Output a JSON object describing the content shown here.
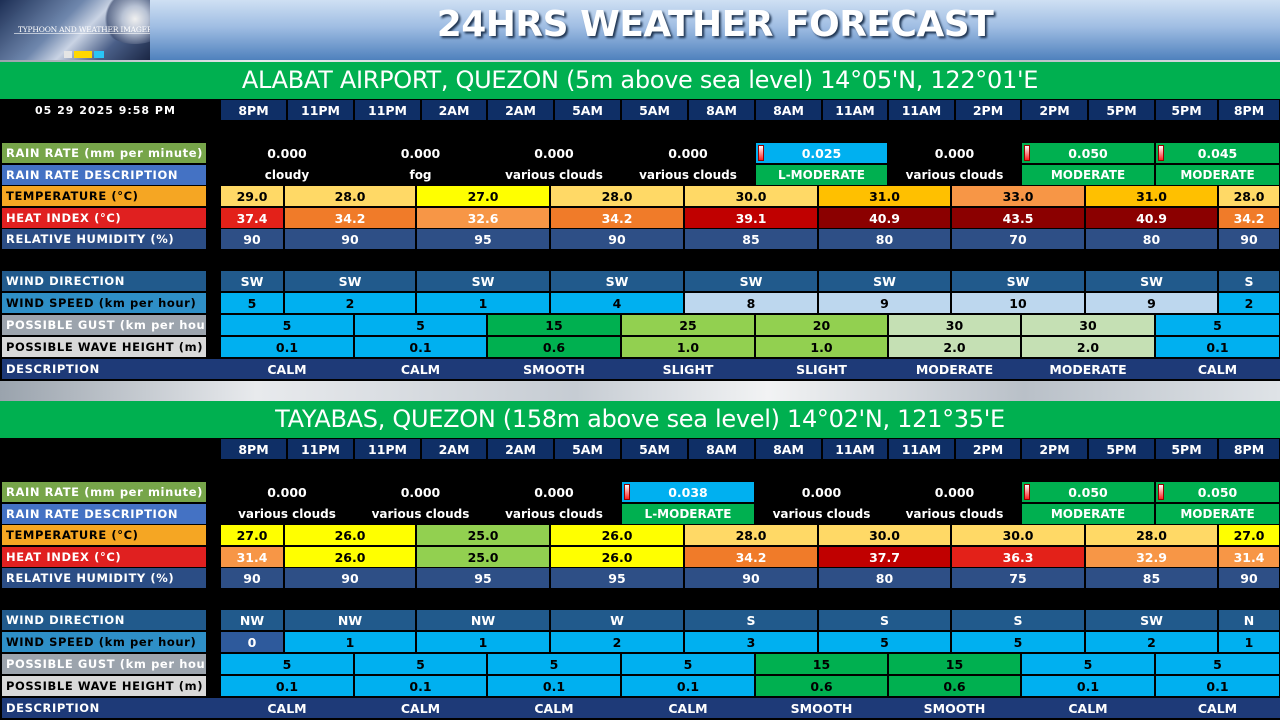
{
  "header": {
    "title": "24HRS WEATHER FORECAST",
    "logo_caption": "TYPHOON AND WEATHER IMAGERY"
  },
  "datetime": "05 29 2025 9:58 PM",
  "time_pairs": [
    [
      "8PM",
      "11PM"
    ],
    [
      "11PM",
      "2AM"
    ],
    [
      "2AM",
      "5AM"
    ],
    [
      "5AM",
      "8AM"
    ],
    [
      "8AM",
      "11AM"
    ],
    [
      "11AM",
      "2PM"
    ],
    [
      "2PM",
      "5PM"
    ],
    [
      "5PM",
      "8PM"
    ]
  ],
  "labels": {
    "rain_rate": "RAIN RATE (mm per minute)",
    "rain_description": "RAIN RATE DESCRIPTION",
    "temperature": "TEMPERATURE (°C)",
    "heat_index": "HEAT INDEX (°C)",
    "humidity": "RELATIVE HUMIDITY (%)",
    "wind_direction": "WIND DIRECTION",
    "wind_speed": "WIND SPEED (km per hour)",
    "gust": "POSSIBLE GUST (km per hour)",
    "wave_height": "POSSIBLE WAVE HEIGHT (m)",
    "sea_description": "DESCRIPTION"
  },
  "colors": {
    "label_green": "#77a54a",
    "label_blue": "#4472c4",
    "label_orange": "#f5a623",
    "label_red": "#e02020",
    "label_navy": "#2b4d85",
    "label_teal": "#215a8c",
    "label_sky": "#2e8fc7",
    "label_gray": "#9ca4ad",
    "label_light": "#d9d9d9",
    "row_navy": "#1e3a78",
    "cell_navy": "#2e4f86",
    "time_navy": "#0f2f66"
  },
  "stations": [
    {
      "title": "ALABAT AIRPORT, QUEZON (5m above sea level) 14°05'N, 122°01'E",
      "rain": [
        {
          "rate": "0.000",
          "desc": "cloudy",
          "bg": "",
          "ind": false
        },
        {
          "rate": "0.000",
          "desc": "fog",
          "bg": "",
          "ind": false
        },
        {
          "rate": "0.000",
          "desc": "various clouds",
          "bg": "",
          "ind": false
        },
        {
          "rate": "0.000",
          "desc": "various clouds",
          "bg": "",
          "ind": false
        },
        {
          "rate": "0.025",
          "desc": "L-MODERATE",
          "bg": "#00b0f0",
          "dbg": "#00b050",
          "ind": true
        },
        {
          "rate": "0.000",
          "desc": "various clouds",
          "bg": "",
          "ind": false
        },
        {
          "rate": "0.050",
          "desc": "MODERATE",
          "bg": "#00b050",
          "dbg": "#00b050",
          "ind": true
        },
        {
          "rate": "0.045",
          "desc": "MODERATE",
          "bg": "#00b050",
          "dbg": "#00b050",
          "ind": true
        }
      ],
      "hourly": [
        {
          "temp": "29.0",
          "temp_bg": "#ffd966",
          "hi": "37.4",
          "hi_bg": "#e32119",
          "rh": "90",
          "wdir": "SW",
          "wspd": "5",
          "wspd_bg": "#00b0f0"
        },
        {
          "temp": "28.0",
          "temp_bg": "#ffd966",
          "hi": "34.2",
          "hi_bg": "#f07b29",
          "rh": "90",
          "wdir": "SW",
          "wspd": "2",
          "wspd_bg": "#00b0f0"
        },
        {
          "temp": "27.0",
          "temp_bg": "#ffff00",
          "hi": "32.6",
          "hi_bg": "#f79646",
          "rh": "95",
          "wdir": "SW",
          "wspd": "1",
          "wspd_bg": "#00b0f0"
        },
        {
          "temp": "28.0",
          "temp_bg": "#ffd966",
          "hi": "34.2",
          "hi_bg": "#f07b29",
          "rh": "90",
          "wdir": "SW",
          "wspd": "4",
          "wspd_bg": "#00b0f0"
        },
        {
          "temp": "30.0",
          "temp_bg": "#ffd966",
          "hi": "39.1",
          "hi_bg": "#c00000",
          "rh": "85",
          "wdir": "SW",
          "wspd": "8",
          "wspd_bg": "#bdd7ee"
        },
        {
          "temp": "31.0",
          "temp_bg": "#ffc000",
          "hi": "40.9",
          "hi_bg": "#8b0000",
          "rh": "80",
          "wdir": "SW",
          "wspd": "9",
          "wspd_bg": "#bdd7ee"
        },
        {
          "temp": "33.0",
          "temp_bg": "#f79646",
          "hi": "43.5",
          "hi_bg": "#8b0000",
          "rh": "70",
          "wdir": "SW",
          "wspd": "10",
          "wspd_bg": "#bdd7ee"
        },
        {
          "temp": "31.0",
          "temp_bg": "#ffc000",
          "hi": "40.9",
          "hi_bg": "#8b0000",
          "rh": "80",
          "wdir": "SW",
          "wspd": "9",
          "wspd_bg": "#bdd7ee"
        },
        {
          "temp": "28.0",
          "temp_bg": "#ffd966",
          "hi": "34.2",
          "hi_bg": "#f07b29",
          "rh": "90",
          "wdir": "S",
          "wspd": "2",
          "wspd_bg": "#00b0f0"
        }
      ],
      "sea": [
        {
          "gust": "5",
          "wave": "0.1",
          "desc": "CALM",
          "bg": "#00b0f0"
        },
        {
          "gust": "5",
          "wave": "0.1",
          "desc": "CALM",
          "bg": "#00b0f0"
        },
        {
          "gust": "15",
          "wave": "0.6",
          "desc": "SMOOTH",
          "bg": "#00b050"
        },
        {
          "gust": "25",
          "wave": "1.0",
          "desc": "SLIGHT",
          "bg": "#92d050"
        },
        {
          "gust": "20",
          "wave": "1.0",
          "desc": "SLIGHT",
          "bg": "#92d050"
        },
        {
          "gust": "30",
          "wave": "2.0",
          "desc": "MODERATE",
          "bg": "#c5e0b4"
        },
        {
          "gust": "30",
          "wave": "2.0",
          "desc": "MODERATE",
          "bg": "#c5e0b4"
        },
        {
          "gust": "5",
          "wave": "0.1",
          "desc": "CALM",
          "bg": "#00b0f0"
        }
      ]
    },
    {
      "title": "TAYABAS, QUEZON (158m above sea level) 14°02'N, 121°35'E",
      "rain": [
        {
          "rate": "0.000",
          "desc": "various clouds",
          "bg": "",
          "ind": false
        },
        {
          "rate": "0.000",
          "desc": "various clouds",
          "bg": "",
          "ind": false
        },
        {
          "rate": "0.000",
          "desc": "various clouds",
          "bg": "",
          "ind": false
        },
        {
          "rate": "0.038",
          "desc": "L-MODERATE",
          "bg": "#00b0f0",
          "dbg": "#00b050",
          "ind": true
        },
        {
          "rate": "0.000",
          "desc": "various clouds",
          "bg": "",
          "ind": false
        },
        {
          "rate": "0.000",
          "desc": "various clouds",
          "bg": "",
          "ind": false
        },
        {
          "rate": "0.050",
          "desc": "MODERATE",
          "bg": "#00b050",
          "dbg": "#00b050",
          "ind": true
        },
        {
          "rate": "0.050",
          "desc": "MODERATE",
          "bg": "#00b050",
          "dbg": "#00b050",
          "ind": true
        }
      ],
      "hourly": [
        {
          "temp": "27.0",
          "temp_bg": "#ffff00",
          "hi": "31.4",
          "hi_bg": "#f79646",
          "rh": "90",
          "wdir": "NW",
          "wspd": "0",
          "wspd_bg": "#2e5a9c"
        },
        {
          "temp": "26.0",
          "temp_bg": "#ffff00",
          "hi": "26.0",
          "hi_bg": "#ffff00",
          "rh": "90",
          "wdir": "NW",
          "wspd": "1",
          "wspd_bg": "#00b0f0"
        },
        {
          "temp": "25.0",
          "temp_bg": "#92d050",
          "hi": "25.0",
          "hi_bg": "#92d050",
          "rh": "95",
          "wdir": "NW",
          "wspd": "1",
          "wspd_bg": "#00b0f0"
        },
        {
          "temp": "26.0",
          "temp_bg": "#ffff00",
          "hi": "26.0",
          "hi_bg": "#ffff00",
          "rh": "95",
          "wdir": "W",
          "wspd": "2",
          "wspd_bg": "#00b0f0"
        },
        {
          "temp": "28.0",
          "temp_bg": "#ffd966",
          "hi": "34.2",
          "hi_bg": "#f07b29",
          "rh": "90",
          "wdir": "S",
          "wspd": "3",
          "wspd_bg": "#00b0f0"
        },
        {
          "temp": "30.0",
          "temp_bg": "#ffd966",
          "hi": "37.7",
          "hi_bg": "#c00000",
          "rh": "80",
          "wdir": "S",
          "wspd": "5",
          "wspd_bg": "#00b0f0"
        },
        {
          "temp": "30.0",
          "temp_bg": "#ffd966",
          "hi": "36.3",
          "hi_bg": "#e32119",
          "rh": "75",
          "wdir": "S",
          "wspd": "5",
          "wspd_bg": "#00b0f0"
        },
        {
          "temp": "28.0",
          "temp_bg": "#ffd966",
          "hi": "32.9",
          "hi_bg": "#f79646",
          "rh": "85",
          "wdir": "SW",
          "wspd": "2",
          "wspd_bg": "#00b0f0"
        },
        {
          "temp": "27.0",
          "temp_bg": "#ffff00",
          "hi": "31.4",
          "hi_bg": "#f79646",
          "rh": "90",
          "wdir": "N",
          "wspd": "1",
          "wspd_bg": "#00b0f0"
        }
      ],
      "sea": [
        {
          "gust": "5",
          "wave": "0.1",
          "desc": "CALM",
          "bg": "#00b0f0"
        },
        {
          "gust": "5",
          "wave": "0.1",
          "desc": "CALM",
          "bg": "#00b0f0"
        },
        {
          "gust": "5",
          "wave": "0.1",
          "desc": "CALM",
          "bg": "#00b0f0"
        },
        {
          "gust": "5",
          "wave": "0.1",
          "desc": "CALM",
          "bg": "#00b0f0"
        },
        {
          "gust": "15",
          "wave": "0.6",
          "desc": "SMOOTH",
          "bg": "#00b050"
        },
        {
          "gust": "15",
          "wave": "0.6",
          "desc": "SMOOTH",
          "bg": "#00b050"
        },
        {
          "gust": "5",
          "wave": "0.1",
          "desc": "CALM",
          "bg": "#00b0f0"
        },
        {
          "gust": "5",
          "wave": "0.1",
          "desc": "CALM",
          "bg": "#00b0f0"
        }
      ]
    }
  ]
}
